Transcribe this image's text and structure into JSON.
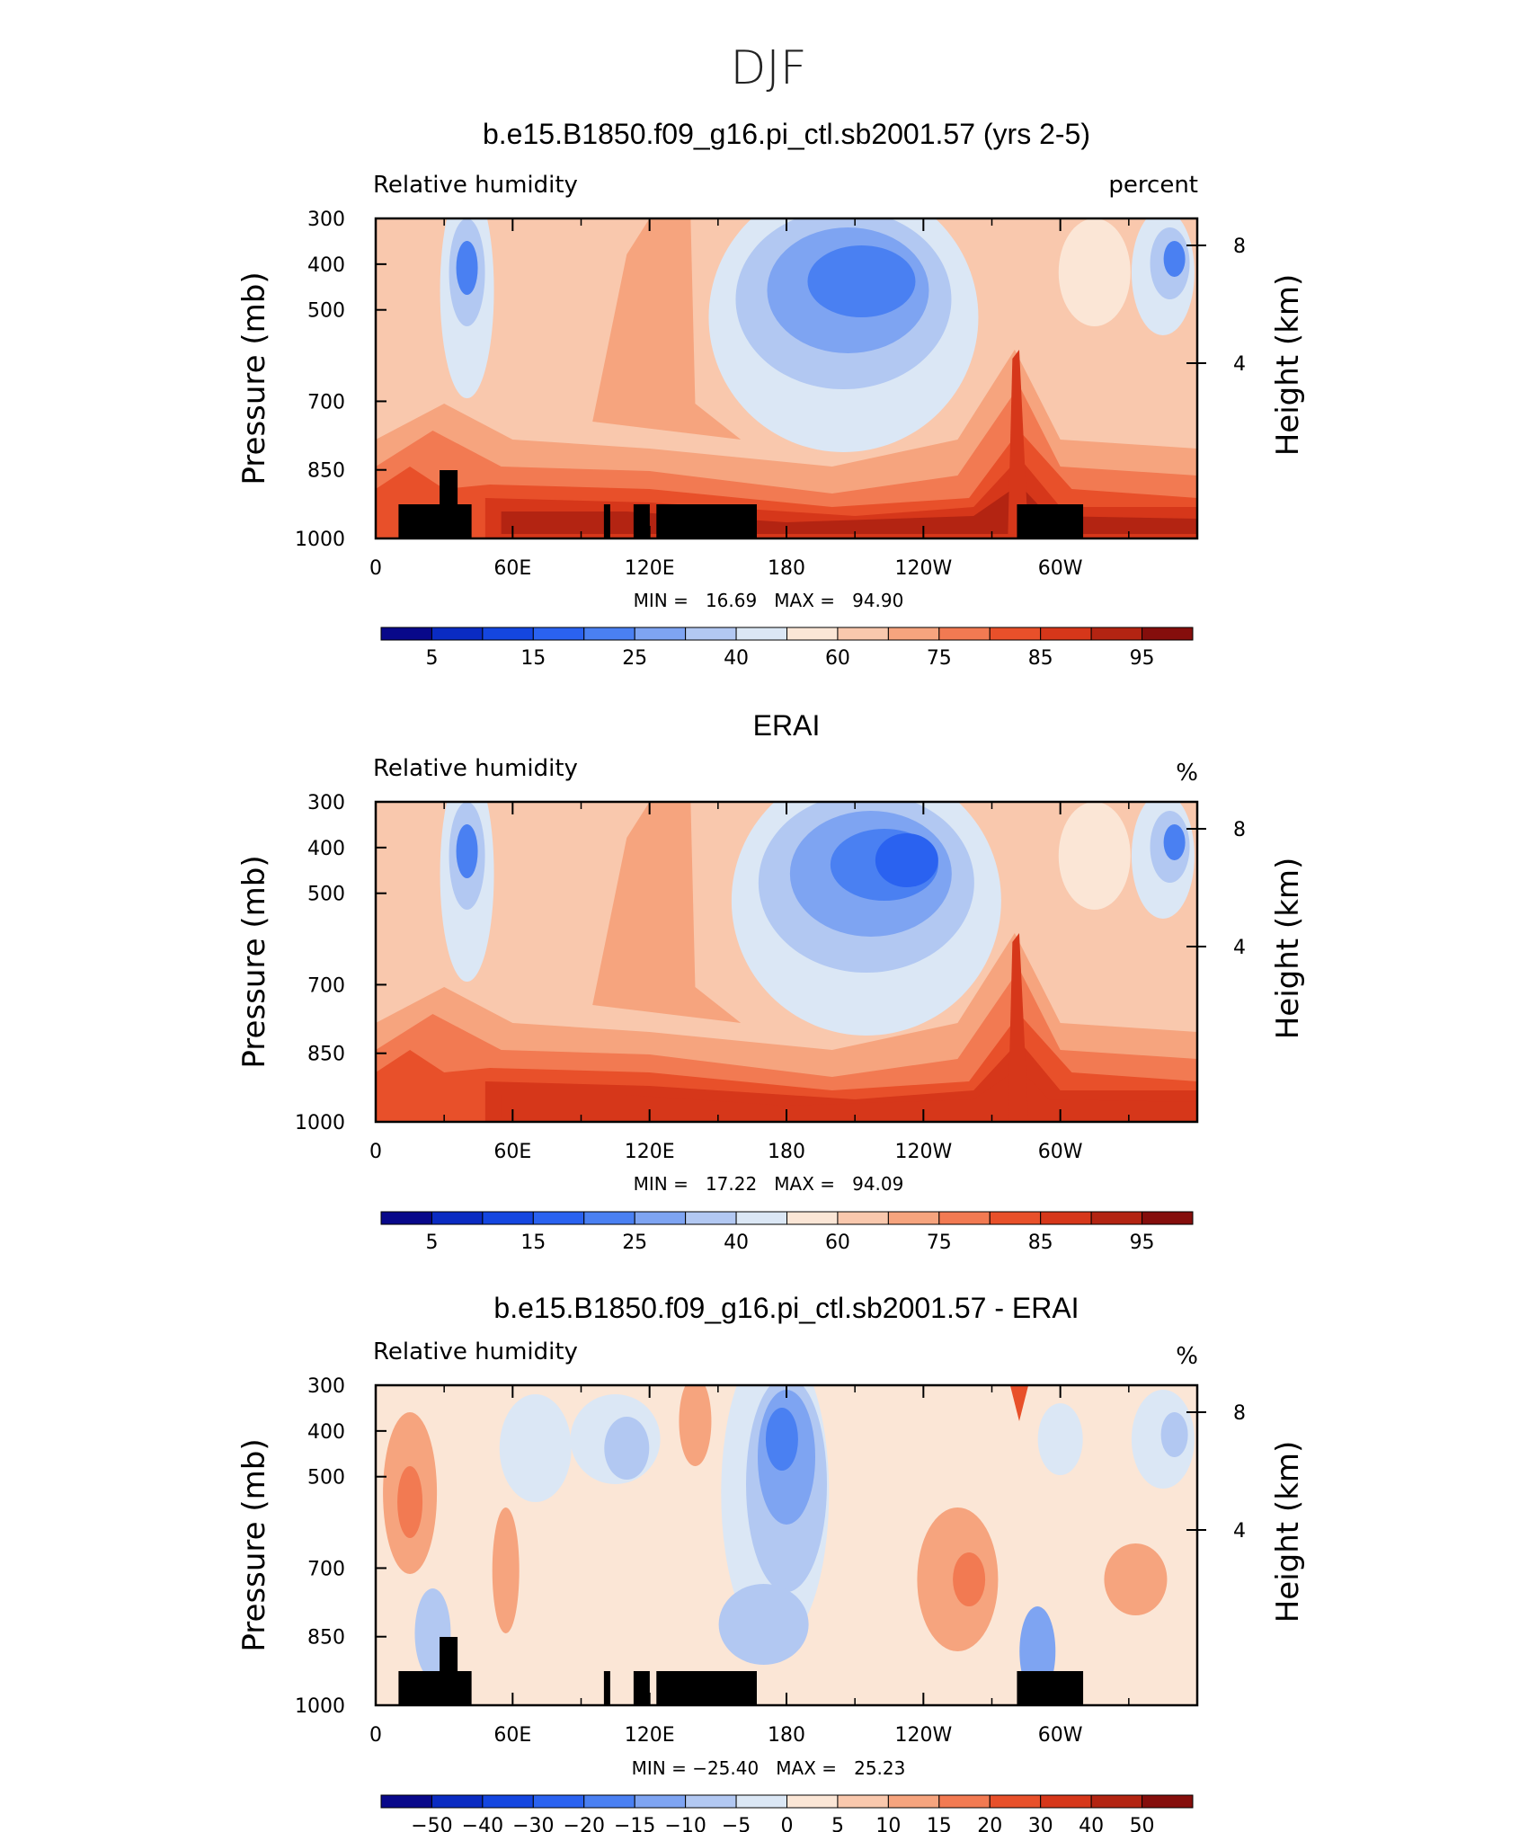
{
  "figure_title": "DJF",
  "colors": {
    "relhum_palette": [
      "#08088a",
      "#0a2bc2",
      "#1446e0",
      "#2a62f0",
      "#4a80f2",
      "#7ea4f2",
      "#b2c8f2",
      "#dbe7f5",
      "#fbe6d6",
      "#f9c8ad",
      "#f6a47e",
      "#f27a52",
      "#e8502a",
      "#d6371a",
      "#b32412",
      "#850e0c"
    ],
    "diff_palette": [
      "#08088a",
      "#0a2bc2",
      "#1446e0",
      "#2a62f0",
      "#4a80f2",
      "#7ea4f2",
      "#b2c8f2",
      "#dbe7f5",
      "#fbe6d6",
      "#f9c8ad",
      "#f6a47e",
      "#f27a52",
      "#e8502a",
      "#d6371a",
      "#b32412",
      "#850e0c"
    ],
    "topography": "#000000"
  },
  "panels": [
    {
      "title": "b.e15.B1850.f09_g16.pi_ctl.sb2001.57 (yrs 2-5)",
      "left_label": "Relative humidity",
      "right_label": "percent",
      "stats_text": "MIN =   16.69   MAX =   94.90",
      "colorbar_labels": [
        "5",
        "15",
        "25",
        "40",
        "60",
        "75",
        "85",
        "95"
      ]
    },
    {
      "title": "ERAI",
      "left_label": "Relative humidity",
      "right_label": "%",
      "stats_text": "MIN =   17.22   MAX =   94.09",
      "colorbar_labels": [
        "5",
        "15",
        "25",
        "40",
        "60",
        "75",
        "85",
        "95"
      ]
    },
    {
      "title": "b.e15.B1850.f09_g16.pi_ctl.sb2001.57 - ERAI",
      "left_label": "Relative humidity",
      "right_label": "%",
      "stats_text": "MIN = −25.40   MAX =   25.23",
      "colorbar_labels": [
        "−50",
        "−40",
        "−30",
        "−20",
        "−15",
        "−10",
        "−5",
        "0",
        "5",
        "10",
        "15",
        "20",
        "30",
        "40",
        "50"
      ]
    }
  ],
  "axes": {
    "y_label": "Pressure (mb)",
    "y_right_label": "Height (km)",
    "y_ticks": [
      "300",
      "400",
      "500",
      "700",
      "850",
      "1000"
    ],
    "y_right_ticks": [
      "8",
      "4"
    ],
    "x_ticks": [
      "0",
      "60E",
      "120E",
      "180",
      "120W",
      "60W"
    ]
  },
  "chart_data": [
    {
      "type": "heatmap",
      "title": "b.e15.B1850.f09_g16.pi_ctl.sb2001.57 (yrs 2-5)",
      "variable": "Relative humidity",
      "units": "percent",
      "x_range_deg_east": [
        0,
        360
      ],
      "y_range_mb": [
        1000,
        300
      ],
      "min": 16.69,
      "max": 94.9,
      "levels": [
        5,
        10,
        15,
        20,
        25,
        30,
        40,
        50,
        60,
        70,
        75,
        80,
        85,
        90,
        95
      ]
    },
    {
      "type": "heatmap",
      "title": "ERAI",
      "variable": "Relative humidity",
      "units": "%",
      "x_range_deg_east": [
        0,
        360
      ],
      "y_range_mb": [
        1000,
        300
      ],
      "min": 17.22,
      "max": 94.09,
      "levels": [
        5,
        10,
        15,
        20,
        25,
        30,
        40,
        50,
        60,
        70,
        75,
        80,
        85,
        90,
        95
      ]
    },
    {
      "type": "heatmap",
      "title": "b.e15.B1850.f09_g16.pi_ctl.sb2001.57 - ERAI",
      "variable": "Relative humidity",
      "units": "%",
      "x_range_deg_east": [
        0,
        360
      ],
      "y_range_mb": [
        1000,
        300
      ],
      "min": -25.4,
      "max": 25.23,
      "levels": [
        -50,
        -40,
        -30,
        -20,
        -15,
        -10,
        -5,
        0,
        5,
        10,
        15,
        20,
        30,
        40,
        50
      ]
    }
  ]
}
